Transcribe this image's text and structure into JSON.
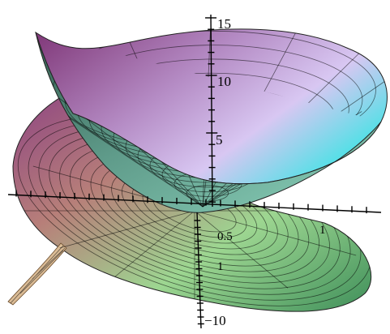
{
  "chart_data": {
    "type": "surface-3d",
    "title": "",
    "surfaces": [
      {
        "kind": "paraboloid",
        "orientation": "upward"
      },
      {
        "kind": "helicoid-like sheet",
        "orientation": "tilted"
      }
    ],
    "axes": {
      "z_ticks": [
        "15",
        "10",
        "5"
      ],
      "z_lower_ticks": [
        "1",
        "−10"
      ],
      "x_ticks": [
        "0.5",
        "1"
      ]
    },
    "colors": {
      "top_left": "#8a3f83",
      "top_right": "#4fd8df",
      "center": "#6aa791",
      "bottom_left": "#c7895f",
      "bottom": "#a5e08c",
      "bottom_right": "#3a8a59"
    }
  }
}
